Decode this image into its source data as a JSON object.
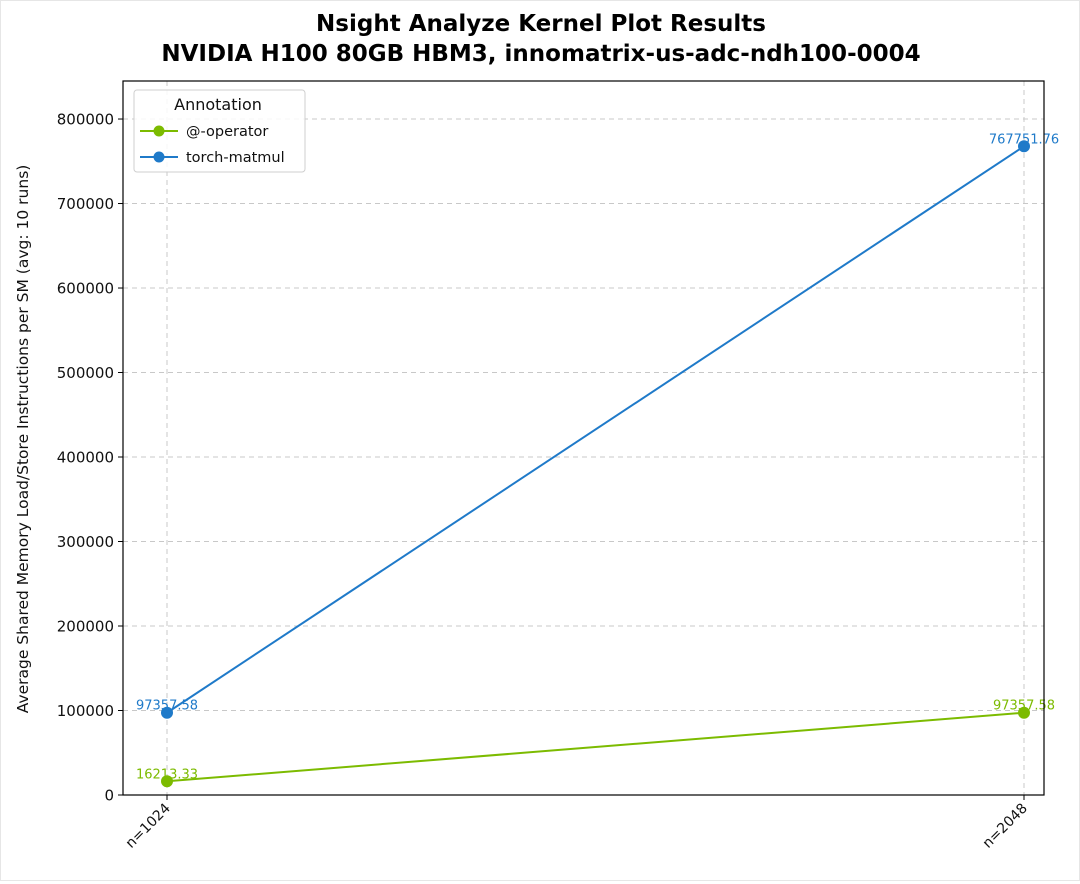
{
  "chart_data": {
    "type": "line",
    "title": "Nsight Analyze Kernel Plot Results",
    "subtitle": "NVIDIA H100 80GB HBM3, innomatrix-us-adc-ndh100-0004",
    "xlabel": "",
    "ylabel": "Average Shared Memory Load/Store Instructions per SM (avg: 10 runs)",
    "categories": [
      "n=1024",
      "n=2048"
    ],
    "ylim": [
      0,
      845000
    ],
    "yticks": [
      0,
      100000,
      200000,
      300000,
      400000,
      500000,
      600000,
      700000,
      800000
    ],
    "ytick_labels": [
      "0",
      "100000",
      "200000",
      "300000",
      "400000",
      "500000",
      "600000",
      "700000",
      "800000"
    ],
    "grid": true,
    "legend": {
      "title": "Annotation",
      "location": "upper-left"
    },
    "series": [
      {
        "name": "@-operator",
        "color": "#7cbb00",
        "values": [
          16213.33,
          97357.58
        ],
        "labels": [
          "16213.33",
          "97357.58"
        ]
      },
      {
        "name": "torch-matmul",
        "color": "#1f7ac9",
        "values": [
          97357.58,
          767751.76
        ],
        "labels": [
          "97357.58",
          "767751.76"
        ]
      }
    ]
  }
}
